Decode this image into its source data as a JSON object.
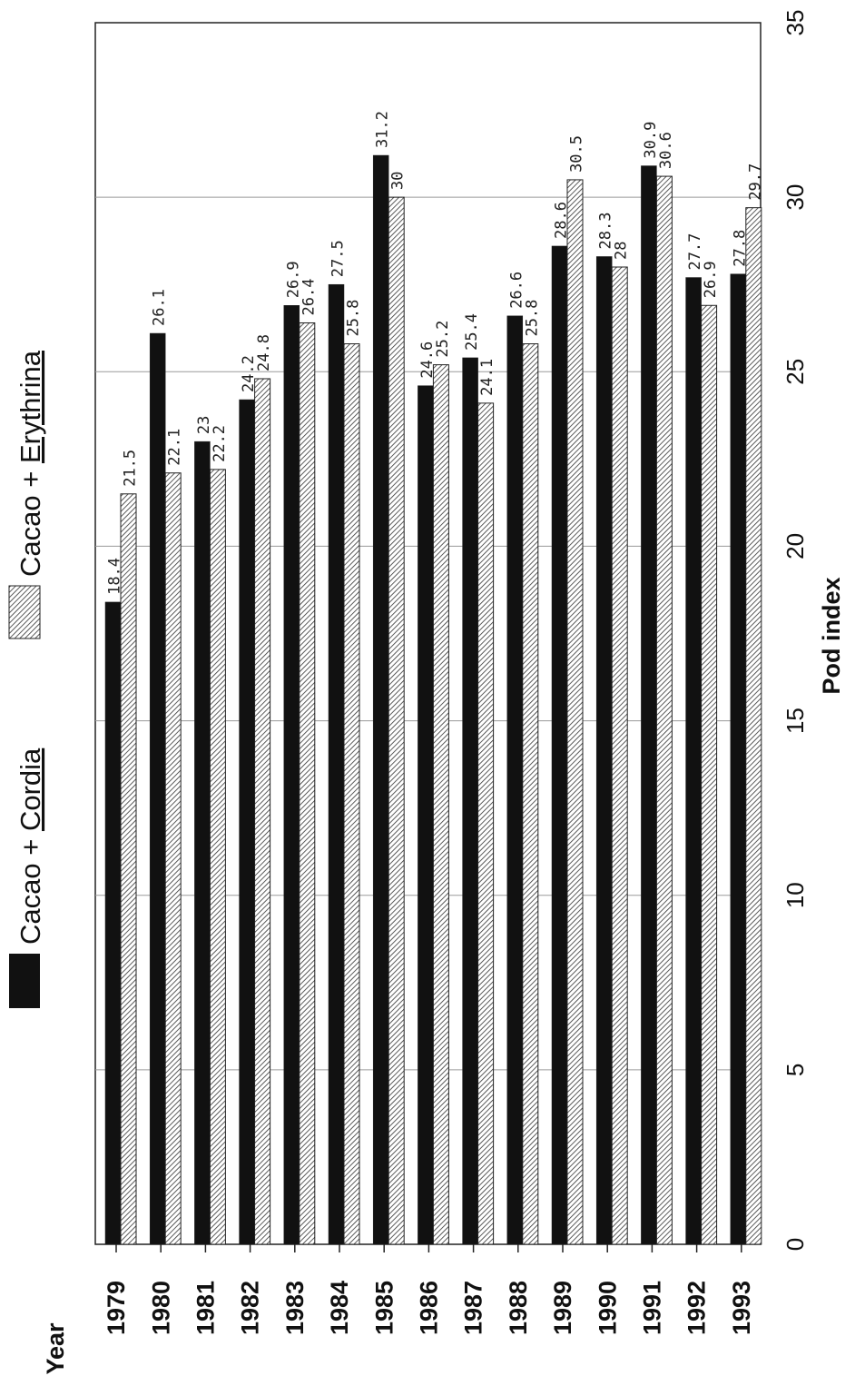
{
  "chart_data": {
    "type": "bar",
    "orientation": "horizontal",
    "figure_rotation": "rotated 90 degrees counter-clockwise",
    "ylabel": "Year",
    "xlabel": "Pod index",
    "xlim": [
      0,
      35
    ],
    "x_ticks": [
      "0",
      "5",
      "10",
      "15",
      "20",
      "25",
      "30",
      "35"
    ],
    "grid": true,
    "legend_position": "top",
    "categories": [
      "1979",
      "1980",
      "1981",
      "1982",
      "1983",
      "1984",
      "1985",
      "1986",
      "1987",
      "1988",
      "1989",
      "1990",
      "1991",
      "1992",
      "1993"
    ],
    "series": [
      {
        "legend_prefix": "Cacao + ",
        "legend_species": "Cordia",
        "pattern": "solid",
        "color": "#111111",
        "values": [
          18.4,
          26.1,
          23,
          24.2,
          26.9,
          27.5,
          31.2,
          24.6,
          25.4,
          26.6,
          28.6,
          28.3,
          30.9,
          27.7,
          27.8
        ],
        "labels": [
          "18.4",
          "26.1",
          "23",
          "24.2",
          "26.9",
          "27.5",
          "31.2",
          "24.6",
          "25.4",
          "26.6",
          "28.6",
          "28.3",
          "30.9",
          "27.7",
          "27.8"
        ]
      },
      {
        "legend_prefix": "Cacao + ",
        "legend_species": "Erythrina",
        "pattern": "diagonal-hatch",
        "color": "#ffffff",
        "values": [
          21.5,
          22.1,
          22.2,
          24.8,
          26.4,
          25.8,
          30,
          25.2,
          24.1,
          25.8,
          30.5,
          28,
          30.6,
          26.9,
          29.7
        ],
        "labels": [
          "21.5",
          "22.1",
          "22.2",
          "24.8",
          "26.4",
          "25.8",
          "30",
          "25.2",
          "24.1",
          "25.8",
          "30.5",
          "28",
          "30.6",
          "26.9",
          "29.7"
        ]
      }
    ]
  }
}
